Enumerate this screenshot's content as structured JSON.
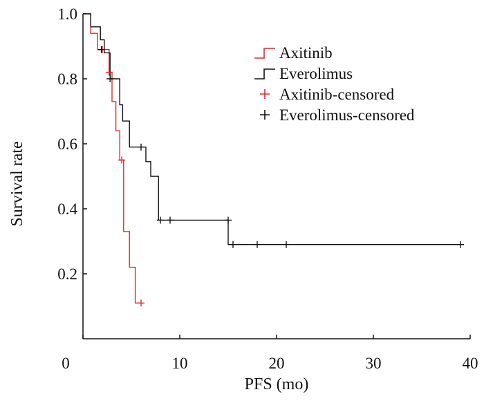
{
  "chart_data": {
    "type": "line",
    "xlabel": "PFS (mo)",
    "ylabel": "Survival rate",
    "xlim": [
      0,
      40
    ],
    "ylim": [
      0,
      1.0
    ],
    "xticks": [
      0,
      10,
      20,
      30,
      40
    ],
    "yticks": [
      0.2,
      0.4,
      0.6,
      0.8,
      1.0
    ],
    "ytick_labels": [
      "0.2",
      "0.4",
      "0.6",
      "0.8",
      "1.0"
    ],
    "grid": false,
    "legend_position": "top-right",
    "series": [
      {
        "name": "Axitinib",
        "color": "#e8262b",
        "kind": "step",
        "points": [
          [
            0,
            1.0
          ],
          [
            0.8,
            1.0
          ],
          [
            0.8,
            0.94
          ],
          [
            1.5,
            0.94
          ],
          [
            1.5,
            0.89
          ],
          [
            2.7,
            0.89
          ],
          [
            2.7,
            0.82
          ],
          [
            3.0,
            0.82
          ],
          [
            3.0,
            0.73
          ],
          [
            3.4,
            0.73
          ],
          [
            3.4,
            0.64
          ],
          [
            3.8,
            0.64
          ],
          [
            3.8,
            0.55
          ],
          [
            4.2,
            0.55
          ],
          [
            4.2,
            0.33
          ],
          [
            4.8,
            0.33
          ],
          [
            4.8,
            0.22
          ],
          [
            5.4,
            0.22
          ],
          [
            5.4,
            0.11
          ],
          [
            6.0,
            0.11
          ]
        ]
      },
      {
        "name": "Everolimus",
        "color": "#111111",
        "kind": "step",
        "points": [
          [
            0,
            1.0
          ],
          [
            0.8,
            1.0
          ],
          [
            0.8,
            0.96
          ],
          [
            1.8,
            0.96
          ],
          [
            1.8,
            0.92
          ],
          [
            2.2,
            0.92
          ],
          [
            2.2,
            0.88
          ],
          [
            2.8,
            0.88
          ],
          [
            2.8,
            0.8
          ],
          [
            3.8,
            0.8
          ],
          [
            3.8,
            0.72
          ],
          [
            4.1,
            0.72
          ],
          [
            4.1,
            0.67
          ],
          [
            4.8,
            0.67
          ],
          [
            4.8,
            0.59
          ],
          [
            6.5,
            0.59
          ],
          [
            6.5,
            0.545
          ],
          [
            7.0,
            0.545
          ],
          [
            7.0,
            0.5
          ],
          [
            7.8,
            0.5
          ],
          [
            7.8,
            0.365
          ],
          [
            15.0,
            0.365
          ],
          [
            15.0,
            0.29
          ],
          [
            39.0,
            0.29
          ]
        ]
      },
      {
        "name": "Axitinib-censored",
        "color": "#e8262b",
        "kind": "censor",
        "points": [
          [
            2.0,
            0.89
          ],
          [
            2.7,
            0.82
          ],
          [
            4.0,
            0.55
          ],
          [
            6.0,
            0.11
          ]
        ]
      },
      {
        "name": "Everolimus-censored",
        "color": "#111111",
        "kind": "censor",
        "points": [
          [
            1.9,
            0.89
          ],
          [
            2.8,
            0.8
          ],
          [
            6.0,
            0.59
          ],
          [
            8.0,
            0.365
          ],
          [
            9.0,
            0.365
          ],
          [
            15.0,
            0.365
          ],
          [
            15.5,
            0.29
          ],
          [
            18.0,
            0.29
          ],
          [
            21.0,
            0.29
          ],
          [
            39.0,
            0.29
          ]
        ]
      }
    ]
  }
}
